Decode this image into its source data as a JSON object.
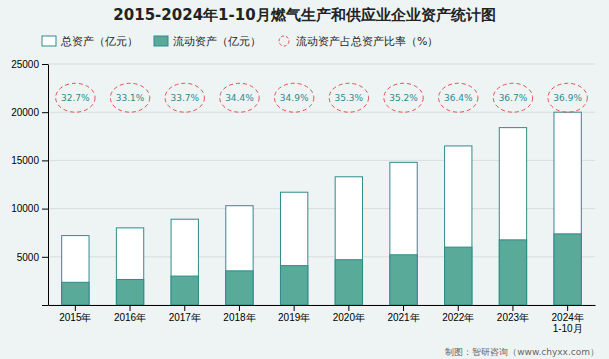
{
  "chart_data": {
    "type": "bar",
    "title": "2015-2024年1-10月燃气生产和供应业企业资产统计图",
    "categories": [
      "2015年",
      "2016年",
      "2017年",
      "2018年",
      "2019年",
      "2020年",
      "2021年",
      "2022年",
      "2023年",
      "2024年\n1-10月"
    ],
    "series": [
      {
        "name": "总资产（亿元）",
        "type": "bar",
        "color": "#ffffff",
        "values": [
          7200,
          8000,
          8900,
          10300,
          11700,
          13300,
          14800,
          16500,
          18400,
          20000
        ]
      },
      {
        "name": "流动资产（亿元）",
        "type": "bar",
        "color": "#5aaa9a",
        "values": [
          2355,
          2648,
          3000,
          3543,
          4083,
          4695,
          5210,
          6006,
          6757,
          7380
        ]
      },
      {
        "name": "流动资产占总资产比率（%）",
        "type": "label",
        "color": "#e05050",
        "marker": "circle",
        "line_style": "dashed",
        "data_labels": true,
        "values": [
          32.7,
          33.1,
          33.7,
          34.4,
          34.9,
          35.3,
          35.2,
          36.4,
          36.7,
          36.9
        ],
        "value_labels": [
          "32.7%",
          "33.1%",
          "33.7%",
          "34.4%",
          "34.9%",
          "35.3%",
          "35.2%",
          "36.4%",
          "36.7%",
          "36.9%"
        ]
      }
    ],
    "ylim": [
      0,
      25000
    ],
    "yticks": [
      {
        "value": 0,
        "label": null
      },
      5000,
      10000,
      15000,
      20000,
      25000
    ],
    "grid": true,
    "legend": "top-left",
    "footer": "制图：智研咨询（www.chyxx.com）"
  }
}
